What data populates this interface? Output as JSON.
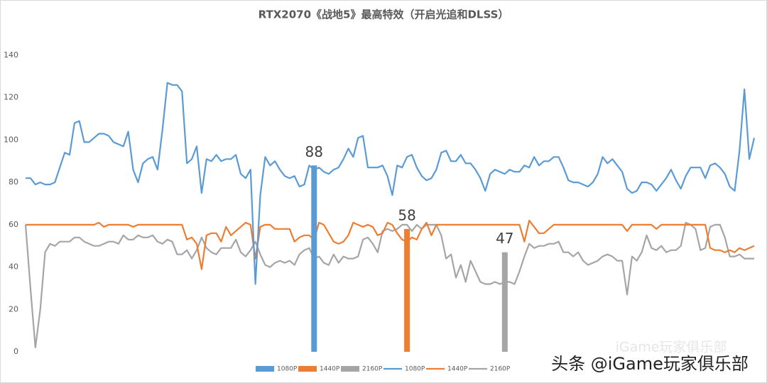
{
  "chart_data": {
    "type": "line",
    "title": "RTX2070《战地5》最高特效（开启光追和DLSS）",
    "watermark": "头条 @iGame玩家俱乐部",
    "watermark_faint": "iGame玩家俱乐部",
    "ylim": [
      0,
      140
    ],
    "yticks": [
      0,
      20,
      40,
      60,
      80,
      100,
      120,
      140
    ],
    "grid": false,
    "legend": "bottom",
    "series": [
      {
        "name": "1080P",
        "type": "bar",
        "color": "#5b9bd5",
        "values": [
          null,
          null,
          null,
          null,
          null,
          null,
          null,
          null,
          null,
          null,
          null,
          null,
          null,
          null,
          null,
          null,
          null,
          null,
          null,
          null,
          null,
          null,
          null,
          null,
          null,
          null,
          null,
          null,
          null,
          null,
          null,
          null,
          null,
          null,
          null,
          null,
          null,
          null,
          null,
          null,
          null,
          null,
          null,
          null,
          null,
          null,
          null,
          null,
          null,
          null,
          null,
          null,
          null,
          null,
          null,
          null,
          null,
          null,
          null,
          88,
          null,
          null,
          null,
          null,
          null,
          null,
          null,
          null,
          null,
          null,
          null,
          null,
          null,
          null,
          null,
          null,
          null,
          null,
          null,
          null,
          null,
          null,
          null,
          null,
          null,
          null,
          null,
          null,
          null,
          null,
          null,
          null,
          null,
          null,
          null,
          null,
          null,
          null,
          null,
          null,
          null,
          null,
          null,
          null,
          null,
          null,
          null,
          null,
          null,
          null,
          null,
          null,
          null,
          null,
          null,
          null,
          null,
          null,
          null,
          null,
          null,
          null,
          null,
          null,
          null,
          null,
          null,
          null,
          null,
          null,
          null,
          null,
          null,
          null,
          null,
          null,
          null,
          null,
          null,
          null,
          null,
          null,
          null,
          null,
          null,
          null,
          null,
          null,
          null,
          null
        ]
      },
      {
        "name": "1440P",
        "type": "bar",
        "color": "#ed7d31",
        "values": [
          null,
          null,
          null,
          null,
          null,
          null,
          null,
          null,
          null,
          null,
          null,
          null,
          null,
          null,
          null,
          null,
          null,
          null,
          null,
          null,
          null,
          null,
          null,
          null,
          null,
          null,
          null,
          null,
          null,
          null,
          null,
          null,
          null,
          null,
          null,
          null,
          null,
          null,
          null,
          null,
          null,
          null,
          null,
          null,
          null,
          null,
          null,
          null,
          null,
          null,
          null,
          null,
          null,
          null,
          null,
          null,
          null,
          null,
          null,
          null,
          null,
          null,
          null,
          null,
          null,
          null,
          null,
          null,
          null,
          null,
          null,
          null,
          null,
          null,
          null,
          null,
          null,
          null,
          58,
          null,
          null,
          null,
          null,
          null,
          null,
          null,
          null,
          null,
          null,
          null,
          null,
          null,
          null,
          null,
          null,
          null,
          null,
          null,
          null,
          null,
          null,
          null,
          null,
          null,
          null,
          null,
          null,
          null,
          null,
          null,
          null,
          null,
          null,
          null,
          null,
          null,
          null,
          null,
          null,
          null,
          null,
          null,
          null,
          null,
          null,
          null,
          null,
          null,
          null,
          null,
          null,
          null,
          null,
          null,
          null,
          null,
          null,
          null,
          null,
          null,
          null,
          null,
          null,
          null,
          null,
          null,
          null,
          null,
          null,
          null
        ]
      },
      {
        "name": "2160P",
        "type": "bar",
        "color": "#a5a5a5",
        "values": [
          null,
          null,
          null,
          null,
          null,
          null,
          null,
          null,
          null,
          null,
          null,
          null,
          null,
          null,
          null,
          null,
          null,
          null,
          null,
          null,
          null,
          null,
          null,
          null,
          null,
          null,
          null,
          null,
          null,
          null,
          null,
          null,
          null,
          null,
          null,
          null,
          null,
          null,
          null,
          null,
          null,
          null,
          null,
          null,
          null,
          null,
          null,
          null,
          null,
          null,
          null,
          null,
          null,
          null,
          null,
          null,
          null,
          null,
          null,
          null,
          null,
          null,
          null,
          null,
          null,
          null,
          null,
          null,
          null,
          null,
          null,
          null,
          null,
          null,
          null,
          null,
          null,
          null,
          null,
          null,
          null,
          null,
          null,
          null,
          null,
          null,
          null,
          null,
          null,
          null,
          null,
          null,
          null,
          null,
          null,
          null,
          null,
          null,
          47,
          null,
          null,
          null,
          null,
          null,
          null,
          null,
          null,
          null,
          null,
          null,
          null,
          null,
          null,
          null,
          null,
          null,
          null,
          null,
          null,
          null,
          null,
          null,
          null,
          null,
          null,
          null,
          null,
          null,
          null,
          null,
          null,
          null,
          null,
          null,
          null,
          null,
          null,
          null,
          null,
          null,
          null,
          null,
          null,
          null,
          null,
          null,
          null,
          null,
          null,
          null,
          null
        ]
      },
      {
        "name": "1080P",
        "type": "line",
        "color": "#5b9bd5",
        "values": [
          82,
          82,
          79,
          80,
          79,
          79,
          80,
          87,
          94,
          93,
          108,
          109,
          99,
          99,
          101,
          103,
          103,
          102,
          99,
          98,
          97,
          104,
          86,
          80,
          89,
          91,
          92,
          86,
          105,
          127,
          126,
          126,
          123,
          89,
          91,
          97,
          75,
          91,
          90,
          93,
          90,
          91,
          91,
          93,
          84,
          82,
          86,
          32,
          74,
          92,
          88,
          90,
          86,
          83,
          82,
          83,
          78,
          79,
          88,
          86,
          87,
          85,
          84,
          86,
          87,
          91,
          96,
          92,
          101,
          102,
          87,
          87,
          87,
          88,
          83,
          74,
          88,
          87,
          92,
          93,
          87,
          83,
          81,
          82,
          86,
          94,
          95,
          90,
          90,
          93,
          89,
          89,
          86,
          82,
          76,
          84,
          86,
          85,
          84,
          86,
          85,
          85,
          88,
          87,
          92,
          88,
          90,
          90,
          92,
          92,
          87,
          81,
          80,
          80,
          79,
          78,
          80,
          84,
          92,
          89,
          91,
          88,
          85,
          77,
          75,
          76,
          80,
          80,
          79,
          76,
          79,
          82,
          86,
          81,
          77,
          83,
          87,
          87,
          87,
          82,
          88,
          89,
          87,
          84,
          78,
          76,
          95,
          124,
          91,
          101
        ]
      },
      {
        "name": "1440P",
        "type": "line",
        "color": "#ed7d31",
        "values": [
          60,
          60,
          60,
          60,
          60,
          60,
          60,
          60,
          60,
          60,
          60,
          60,
          60,
          60,
          60,
          61,
          59,
          60,
          60,
          60,
          60,
          60,
          59,
          60,
          60,
          60,
          60,
          60,
          60,
          60,
          60,
          60,
          60,
          53,
          54,
          51,
          39,
          55,
          56,
          56,
          52,
          59,
          55,
          57,
          59,
          61,
          60,
          44,
          59,
          60,
          60,
          58,
          58,
          58,
          58,
          52,
          54,
          55,
          55,
          53,
          61,
          60,
          56,
          52,
          51,
          52,
          55,
          61,
          60,
          59,
          60,
          59,
          55,
          56,
          61,
          60,
          56,
          53,
          52,
          54,
          53,
          58,
          61,
          55,
          60,
          60,
          60,
          60,
          60,
          60,
          60,
          60,
          60,
          60,
          60,
          60,
          60,
          60,
          60,
          60,
          60,
          60,
          52,
          62,
          59,
          56,
          56,
          58,
          60,
          60,
          60,
          60,
          60,
          60,
          60,
          60,
          60,
          60,
          60,
          60,
          60,
          60,
          60,
          57,
          60,
          60,
          60,
          60,
          60,
          58,
          60,
          60,
          60,
          60,
          60,
          60,
          60,
          60,
          60,
          60,
          49,
          48,
          48,
          47,
          48,
          47,
          49,
          48,
          49,
          50
        ]
      },
      {
        "name": "2160P",
        "type": "line",
        "color": "#a5a5a5",
        "values": [
          60,
          30,
          2,
          20,
          47,
          51,
          50,
          52,
          52,
          52,
          54,
          54,
          52,
          51,
          50,
          50,
          51,
          52,
          52,
          51,
          55,
          53,
          53,
          55,
          54,
          54,
          55,
          52,
          51,
          53,
          52,
          46,
          46,
          48,
          44,
          48,
          54,
          49,
          47,
          46,
          49,
          49,
          49,
          53,
          47,
          45,
          48,
          52,
          46,
          41,
          40,
          42,
          43,
          42,
          43,
          41,
          46,
          48,
          49,
          44,
          45,
          42,
          41,
          46,
          42,
          45,
          44,
          44,
          45,
          53,
          54,
          51,
          47,
          57,
          58,
          57,
          58,
          60,
          60,
          57,
          60,
          58,
          60,
          60,
          60,
          55,
          44,
          46,
          35,
          41,
          33,
          43,
          38,
          33,
          32,
          32,
          33,
          32,
          33,
          33,
          32,
          38,
          45,
          51,
          49,
          50,
          50,
          51,
          51,
          52,
          47,
          47,
          45,
          47,
          43,
          41,
          42,
          43,
          45,
          46,
          45,
          43,
          43,
          27,
          45,
          43,
          47,
          55,
          49,
          48,
          50,
          47,
          48,
          48,
          50,
          61,
          60,
          58,
          48,
          49,
          59,
          60,
          60,
          54,
          45,
          45,
          46,
          44,
          44,
          44
        ]
      }
    ]
  }
}
